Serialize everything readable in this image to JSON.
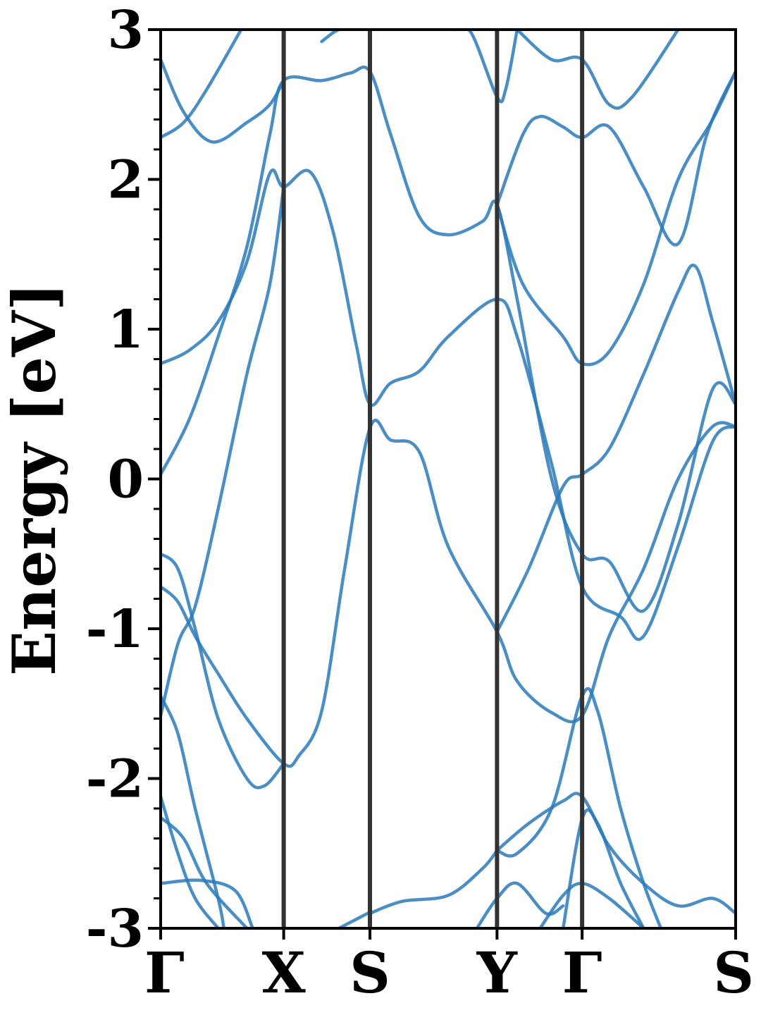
{
  "chart_data": {
    "type": "line",
    "title": "",
    "xlabel": "",
    "ylabel": "Energy [eV]",
    "ylim": [
      -3,
      3
    ],
    "yticks": [
      {
        "value": 3,
        "label": "3"
      },
      {
        "value": 2,
        "label": "2"
      },
      {
        "value": 1,
        "label": "1"
      },
      {
        "value": 0,
        "label": "0"
      },
      {
        "value": -1,
        "label": "-1"
      },
      {
        "value": -2,
        "label": "-2"
      },
      {
        "value": -3,
        "label": "-3"
      }
    ],
    "minor_tick_step": 0.2,
    "kpoints": [
      {
        "label": "Γ",
        "x": 0.0
      },
      {
        "label": "X",
        "x": 0.214
      },
      {
        "label": "S",
        "x": 0.364
      },
      {
        "label": "Y",
        "x": 0.585
      },
      {
        "label": "Γ",
        "x": 0.733
      },
      {
        "label": "S",
        "x": 1.0
      }
    ],
    "line_color": "#2a7ab8",
    "vline_color": "#333333",
    "bands": [
      {
        "points": [
          [
            0.0,
            0.77
          ],
          [
            0.05,
            0.86
          ],
          [
            0.1,
            1.05
          ],
          [
            0.15,
            1.45
          ],
          [
            0.19,
            2.04
          ],
          [
            0.214,
            1.95
          ],
          [
            0.26,
            2.05
          ],
          [
            0.3,
            1.65
          ],
          [
            0.34,
            0.9
          ],
          [
            0.364,
            0.5
          ],
          [
            0.4,
            0.64
          ],
          [
            0.45,
            0.72
          ],
          [
            0.5,
            0.95
          ],
          [
            0.585,
            1.2
          ],
          [
            0.62,
            0.95
          ],
          [
            0.68,
            0.1
          ],
          [
            0.733,
            -0.72
          ],
          [
            0.8,
            -0.92
          ],
          [
            0.84,
            -1.05
          ],
          [
            0.9,
            -0.45
          ],
          [
            0.96,
            0.25
          ],
          [
            1.0,
            0.35
          ]
        ]
      },
      {
        "points": [
          [
            0.0,
            0.03
          ],
          [
            0.05,
            0.4
          ],
          [
            0.1,
            0.95
          ],
          [
            0.15,
            1.55
          ],
          [
            0.19,
            2.3
          ],
          [
            0.214,
            2.66
          ],
          [
            0.28,
            2.66
          ],
          [
            0.33,
            2.71
          ],
          [
            0.364,
            2.72
          ],
          [
            0.4,
            2.3
          ],
          [
            0.45,
            1.75
          ],
          [
            0.5,
            1.63
          ],
          [
            0.56,
            1.72
          ],
          [
            0.585,
            1.83
          ],
          [
            0.62,
            1.2
          ],
          [
            0.68,
            0.0
          ],
          [
            0.733,
            -0.5
          ],
          [
            0.78,
            -0.55
          ],
          [
            0.84,
            -0.88
          ],
          [
            0.9,
            -0.3
          ],
          [
            0.96,
            0.6
          ],
          [
            1.0,
            0.5
          ]
        ]
      },
      {
        "points": [
          [
            0.0,
            -0.72
          ],
          [
            0.03,
            -0.82
          ],
          [
            0.06,
            -1.05
          ],
          [
            0.1,
            -1.3
          ],
          [
            0.15,
            -1.6
          ],
          [
            0.214,
            -1.9
          ],
          [
            0.24,
            -1.85
          ],
          [
            0.28,
            -1.55
          ],
          [
            0.32,
            -0.6
          ],
          [
            0.364,
            0.34
          ],
          [
            0.4,
            0.26
          ],
          [
            0.45,
            0.18
          ],
          [
            0.5,
            -0.45
          ],
          [
            0.585,
            -1.02
          ],
          [
            0.62,
            -1.35
          ],
          [
            0.68,
            -1.56
          ],
          [
            0.733,
            -1.58
          ],
          [
            0.78,
            -1.05
          ],
          [
            0.84,
            -0.6
          ],
          [
            0.9,
            0.0
          ],
          [
            0.96,
            0.35
          ],
          [
            1.0,
            0.35
          ]
        ]
      },
      {
        "points": [
          [
            0.0,
            -1.58
          ],
          [
            0.03,
            -1.1
          ],
          [
            0.06,
            -0.85
          ],
          [
            0.1,
            -0.2
          ],
          [
            0.15,
            0.7
          ],
          [
            0.19,
            1.3
          ],
          [
            0.214,
            1.95
          ]
        ]
      },
      {
        "points": [
          [
            0.0,
            -0.5
          ],
          [
            0.03,
            -0.6
          ],
          [
            0.06,
            -1.0
          ],
          [
            0.1,
            -1.6
          ],
          [
            0.15,
            -2.0
          ],
          [
            0.18,
            -2.05
          ],
          [
            0.214,
            -1.9
          ]
        ]
      },
      {
        "points": [
          [
            0.0,
            2.28
          ],
          [
            0.04,
            2.38
          ],
          [
            0.08,
            2.6
          ],
          [
            0.14,
            3.0
          ]
        ]
      },
      {
        "points": [
          [
            0.0,
            2.8
          ],
          [
            0.04,
            2.45
          ],
          [
            0.09,
            2.25
          ],
          [
            0.15,
            2.38
          ],
          [
            0.19,
            2.5
          ],
          [
            0.214,
            2.66
          ]
        ]
      },
      {
        "points": [
          [
            0.0,
            -1.45
          ],
          [
            0.03,
            -1.7
          ],
          [
            0.06,
            -2.2
          ],
          [
            0.1,
            -2.8
          ],
          [
            0.11,
            -3.0
          ]
        ]
      },
      {
        "points": [
          [
            0.0,
            -2.12
          ],
          [
            0.03,
            -2.5
          ],
          [
            0.06,
            -2.8
          ],
          [
            0.1,
            -3.0
          ]
        ]
      },
      {
        "points": [
          [
            0.0,
            -2.7
          ],
          [
            0.07,
            -2.68
          ],
          [
            0.13,
            -2.75
          ],
          [
            0.16,
            -3.0
          ]
        ]
      },
      {
        "points": [
          [
            0.0,
            -2.26
          ],
          [
            0.04,
            -2.4
          ],
          [
            0.08,
            -2.7
          ],
          [
            0.15,
            -3.0
          ]
        ]
      },
      {
        "points": [
          [
            0.28,
            2.92
          ],
          [
            0.3,
            2.98
          ],
          [
            0.31,
            3.0
          ]
        ]
      },
      {
        "points": [
          [
            0.51,
            3.0
          ],
          [
            0.54,
            2.98
          ],
          [
            0.585,
            2.55
          ],
          [
            0.6,
            2.6
          ],
          [
            0.62,
            3.0
          ]
        ]
      },
      {
        "points": [
          [
            0.62,
            3.0
          ],
          [
            0.68,
            2.8
          ],
          [
            0.733,
            2.8
          ],
          [
            0.78,
            2.5
          ],
          [
            0.82,
            2.55
          ],
          [
            0.9,
            3.0
          ]
        ]
      },
      {
        "points": [
          [
            0.585,
            1.83
          ],
          [
            0.63,
            2.3
          ],
          [
            0.66,
            2.42
          ],
          [
            0.7,
            2.35
          ],
          [
            0.733,
            2.28
          ],
          [
            0.78,
            2.35
          ],
          [
            0.84,
            1.95
          ],
          [
            0.9,
            1.57
          ],
          [
            0.95,
            2.3
          ],
          [
            1.0,
            2.72
          ]
        ]
      },
      {
        "points": [
          [
            0.585,
            1.83
          ],
          [
            0.63,
            1.3
          ],
          [
            0.7,
            0.95
          ],
          [
            0.733,
            0.77
          ],
          [
            0.78,
            0.85
          ],
          [
            0.84,
            1.3
          ],
          [
            0.9,
            2.0
          ],
          [
            0.96,
            2.4
          ],
          [
            1.0,
            2.72
          ]
        ]
      },
      {
        "points": [
          [
            0.585,
            -1.02
          ],
          [
            0.64,
            -0.6
          ],
          [
            0.7,
            -0.05
          ],
          [
            0.733,
            0.03
          ],
          [
            0.78,
            0.2
          ],
          [
            0.84,
            0.7
          ],
          [
            0.9,
            1.25
          ],
          [
            0.93,
            1.42
          ],
          [
            0.96,
            1.05
          ],
          [
            1.0,
            0.5
          ]
        ]
      },
      {
        "points": [
          [
            0.585,
            -2.48
          ],
          [
            0.64,
            -2.3
          ],
          [
            0.7,
            -2.15
          ],
          [
            0.733,
            -2.12
          ],
          [
            0.78,
            -2.45
          ],
          [
            0.84,
            -2.7
          ],
          [
            0.9,
            -2.85
          ],
          [
            0.96,
            -2.8
          ],
          [
            1.0,
            -2.9
          ]
        ]
      },
      {
        "points": [
          [
            0.585,
            -2.48
          ],
          [
            0.62,
            -2.5
          ],
          [
            0.68,
            -2.2
          ],
          [
            0.733,
            -1.45
          ],
          [
            0.76,
            -1.55
          ],
          [
            0.8,
            -2.2
          ],
          [
            0.84,
            -2.7
          ],
          [
            0.87,
            -3.0
          ]
        ]
      },
      {
        "points": [
          [
            0.364,
            -2.9
          ],
          [
            0.42,
            -2.82
          ],
          [
            0.5,
            -2.78
          ],
          [
            0.56,
            -2.6
          ],
          [
            0.585,
            -2.48
          ]
        ]
      },
      {
        "points": [
          [
            0.31,
            -3.0
          ],
          [
            0.36,
            -2.9
          ]
        ]
      },
      {
        "points": [
          [
            0.55,
            -3.0
          ],
          [
            0.585,
            -2.8
          ],
          [
            0.62,
            -2.7
          ],
          [
            0.67,
            -2.9
          ],
          [
            0.7,
            -2.85
          ]
        ]
      },
      {
        "points": [
          [
            0.7,
            -3.0
          ],
          [
            0.733,
            -2.27
          ],
          [
            0.76,
            -2.3
          ],
          [
            0.8,
            -2.7
          ],
          [
            0.84,
            -3.0
          ]
        ]
      },
      {
        "points": [
          [
            0.66,
            -3.0
          ],
          [
            0.7,
            -2.78
          ],
          [
            0.733,
            -2.7
          ],
          [
            0.78,
            -2.8
          ],
          [
            0.84,
            -3.0
          ]
        ]
      }
    ]
  }
}
